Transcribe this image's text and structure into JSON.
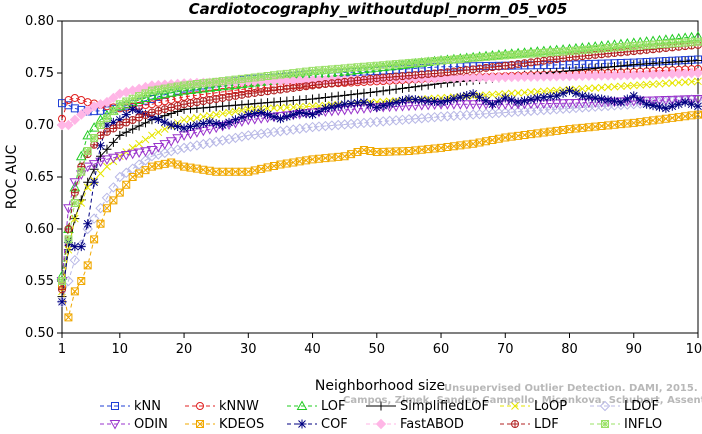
{
  "chart_data": {
    "type": "line",
    "title": "Cardiotocography_withoutdupl_norm_05_v05",
    "xlabel": "Neighborhood size",
    "ylabel": "ROC AUC",
    "xlim": [
      1,
      100
    ],
    "ylim": [
      0.5,
      0.8
    ],
    "xticks": [
      1,
      10,
      20,
      30,
      40,
      50,
      60,
      70,
      80,
      90,
      100
    ],
    "yticks": [
      0.5,
      0.55,
      0.6,
      0.65,
      0.7,
      0.75,
      0.8
    ],
    "ytick_labels": [
      "0.50",
      "0.55",
      "0.60",
      "0.65",
      "0.70",
      "0.75",
      "0.80"
    ],
    "grid": false,
    "legend_position": "bottom",
    "credit_lines": [
      "Unsupervised Outlier Detection. DAMI, 2015.",
      "Campos, Zimek, Sander, Campello, Micenkova, Schubert, Assent, Houle"
    ],
    "series": [
      {
        "name": "kNN",
        "color": "#1f3fd6",
        "marker": "square",
        "dash": "4,3",
        "points": [
          [
            1,
            0.721
          ],
          [
            2,
            0.719
          ],
          [
            3,
            0.716
          ],
          [
            5,
            0.713
          ],
          [
            8,
            0.714
          ],
          [
            10,
            0.717
          ],
          [
            15,
            0.725
          ],
          [
            20,
            0.735
          ],
          [
            25,
            0.74
          ],
          [
            30,
            0.744
          ],
          [
            35,
            0.746
          ],
          [
            40,
            0.749
          ],
          [
            50,
            0.752
          ],
          [
            60,
            0.756
          ],
          [
            70,
            0.757
          ],
          [
            80,
            0.758
          ],
          [
            90,
            0.76
          ],
          [
            100,
            0.763
          ]
        ]
      },
      {
        "name": "kNNW",
        "color": "#e02020",
        "marker": "circle",
        "dash": "4,3",
        "points": [
          [
            1,
            0.706
          ],
          [
            2,
            0.724
          ],
          [
            3,
            0.726
          ],
          [
            5,
            0.722
          ],
          [
            8,
            0.718
          ],
          [
            10,
            0.716
          ],
          [
            15,
            0.72
          ],
          [
            20,
            0.727
          ],
          [
            25,
            0.731
          ],
          [
            30,
            0.735
          ],
          [
            40,
            0.739
          ],
          [
            50,
            0.742
          ],
          [
            60,
            0.745
          ],
          [
            70,
            0.747
          ],
          [
            80,
            0.749
          ],
          [
            90,
            0.751
          ],
          [
            100,
            0.754
          ]
        ]
      },
      {
        "name": "LOF",
        "color": "#22cc22",
        "marker": "triangle",
        "dash": "4,3",
        "points": [
          [
            1,
            0.555
          ],
          [
            2,
            0.6
          ],
          [
            3,
            0.64
          ],
          [
            4,
            0.67
          ],
          [
            5,
            0.69
          ],
          [
            7,
            0.705
          ],
          [
            10,
            0.718
          ],
          [
            15,
            0.728
          ],
          [
            20,
            0.733
          ],
          [
            30,
            0.74
          ],
          [
            40,
            0.748
          ],
          [
            50,
            0.755
          ],
          [
            60,
            0.762
          ],
          [
            70,
            0.768
          ],
          [
            80,
            0.773
          ],
          [
            90,
            0.779
          ],
          [
            100,
            0.785
          ]
        ]
      },
      {
        "name": "SimplifiedLOF",
        "color": "#000000",
        "marker": "plus",
        "dash": "",
        "points": [
          [
            1,
            0.535
          ],
          [
            2,
            0.58
          ],
          [
            3,
            0.61
          ],
          [
            4,
            0.628
          ],
          [
            5,
            0.645
          ],
          [
            7,
            0.67
          ],
          [
            10,
            0.69
          ],
          [
            15,
            0.705
          ],
          [
            20,
            0.715
          ],
          [
            30,
            0.72
          ],
          [
            40,
            0.725
          ],
          [
            50,
            0.732
          ],
          [
            60,
            0.74
          ],
          [
            70,
            0.746
          ],
          [
            80,
            0.752
          ],
          [
            90,
            0.758
          ],
          [
            100,
            0.762
          ]
        ]
      },
      {
        "name": "LoOP",
        "color": "#e6e600",
        "marker": "x",
        "dash": "4,3",
        "points": [
          [
            1,
            0.54
          ],
          [
            2,
            0.58
          ],
          [
            3,
            0.61
          ],
          [
            5,
            0.64
          ],
          [
            8,
            0.66
          ],
          [
            10,
            0.67
          ],
          [
            15,
            0.69
          ],
          [
            20,
            0.705
          ],
          [
            30,
            0.715
          ],
          [
            40,
            0.718
          ],
          [
            50,
            0.722
          ],
          [
            60,
            0.726
          ],
          [
            70,
            0.73
          ],
          [
            80,
            0.734
          ],
          [
            90,
            0.738
          ],
          [
            100,
            0.742
          ]
        ]
      },
      {
        "name": "LDOF",
        "color": "#b8b8e6",
        "marker": "diamond",
        "dash": "4,3",
        "points": [
          [
            1,
            0.53
          ],
          [
            2,
            0.55
          ],
          [
            3,
            0.57
          ],
          [
            5,
            0.6
          ],
          [
            8,
            0.63
          ],
          [
            10,
            0.65
          ],
          [
            15,
            0.67
          ],
          [
            20,
            0.678
          ],
          [
            30,
            0.69
          ],
          [
            40,
            0.698
          ],
          [
            50,
            0.703
          ],
          [
            60,
            0.708
          ],
          [
            70,
            0.712
          ],
          [
            80,
            0.716
          ],
          [
            90,
            0.72
          ],
          [
            100,
            0.725
          ]
        ]
      },
      {
        "name": "ODIN",
        "color": "#9933cc",
        "marker": "triangle-down",
        "dash": "4,3",
        "points": [
          [
            1,
            0.55
          ],
          [
            2,
            0.62
          ],
          [
            3,
            0.645
          ],
          [
            5,
            0.66
          ],
          [
            8,
            0.667
          ],
          [
            10,
            0.67
          ],
          [
            15,
            0.676
          ],
          [
            20,
            0.69
          ],
          [
            30,
            0.705
          ],
          [
            40,
            0.712
          ],
          [
            50,
            0.717
          ],
          [
            60,
            0.72
          ],
          [
            70,
            0.72
          ],
          [
            80,
            0.721
          ],
          [
            90,
            0.723
          ],
          [
            100,
            0.725
          ]
        ]
      },
      {
        "name": "KDEOS",
        "color": "#f0a800",
        "marker": "square-x",
        "dash": "4,3",
        "points": [
          [
            1,
            0.545
          ],
          [
            2,
            0.515
          ],
          [
            3,
            0.54
          ],
          [
            4,
            0.55
          ],
          [
            5,
            0.565
          ],
          [
            6,
            0.59
          ],
          [
            8,
            0.62
          ],
          [
            10,
            0.635
          ],
          [
            12,
            0.65
          ],
          [
            15,
            0.66
          ],
          [
            18,
            0.664
          ],
          [
            20,
            0.66
          ],
          [
            25,
            0.655
          ],
          [
            30,
            0.655
          ],
          [
            35,
            0.662
          ],
          [
            40,
            0.667
          ],
          [
            45,
            0.67
          ],
          [
            48,
            0.676
          ],
          [
            50,
            0.674
          ],
          [
            55,
            0.675
          ],
          [
            60,
            0.678
          ],
          [
            65,
            0.682
          ],
          [
            70,
            0.688
          ],
          [
            75,
            0.692
          ],
          [
            80,
            0.696
          ],
          [
            85,
            0.699
          ],
          [
            90,
            0.702
          ],
          [
            95,
            0.706
          ],
          [
            100,
            0.71
          ]
        ]
      },
      {
        "name": "COF",
        "color": "#000080",
        "marker": "asterisk",
        "dash": "4,3",
        "points": [
          [
            1,
            0.53
          ],
          [
            2,
            0.587
          ],
          [
            3,
            0.583
          ],
          [
            4,
            0.583
          ],
          [
            5,
            0.605
          ],
          [
            6,
            0.645
          ],
          [
            7,
            0.68
          ],
          [
            8,
            0.7
          ],
          [
            10,
            0.705
          ],
          [
            12,
            0.715
          ],
          [
            15,
            0.708
          ],
          [
            18,
            0.7
          ],
          [
            20,
            0.697
          ],
          [
            22,
            0.7
          ],
          [
            24,
            0.703
          ],
          [
            26,
            0.7
          ],
          [
            28,
            0.705
          ],
          [
            30,
            0.71
          ],
          [
            32,
            0.712
          ],
          [
            35,
            0.706
          ],
          [
            38,
            0.712
          ],
          [
            40,
            0.71
          ],
          [
            42,
            0.716
          ],
          [
            45,
            0.72
          ],
          [
            48,
            0.722
          ],
          [
            50,
            0.717
          ],
          [
            55,
            0.725
          ],
          [
            60,
            0.722
          ],
          [
            65,
            0.73
          ],
          [
            68,
            0.72
          ],
          [
            70,
            0.726
          ],
          [
            72,
            0.722
          ],
          [
            75,
            0.726
          ],
          [
            78,
            0.728
          ],
          [
            80,
            0.733
          ],
          [
            82,
            0.728
          ],
          [
            85,
            0.725
          ],
          [
            88,
            0.722
          ],
          [
            90,
            0.728
          ],
          [
            92,
            0.72
          ],
          [
            95,
            0.716
          ],
          [
            98,
            0.722
          ],
          [
            100,
            0.718
          ]
        ]
      },
      {
        "name": "FastABOD",
        "color": "#ffb6e6",
        "marker": "diamond-filled",
        "dash": "4,3",
        "points": [
          [
            1,
            0.7
          ],
          [
            2,
            0.7
          ],
          [
            4,
            0.71
          ],
          [
            6,
            0.718
          ],
          [
            8,
            0.722
          ],
          [
            10,
            0.73
          ],
          [
            15,
            0.738
          ],
          [
            20,
            0.74
          ],
          [
            30,
            0.742
          ],
          [
            40,
            0.743
          ],
          [
            50,
            0.744
          ],
          [
            60,
            0.745
          ],
          [
            70,
            0.746
          ],
          [
            80,
            0.747
          ],
          [
            90,
            0.748
          ],
          [
            100,
            0.75
          ]
        ]
      },
      {
        "name": "LDF",
        "color": "#b02020",
        "marker": "circle-plus",
        "dash": "4,3",
        "points": [
          [
            1,
            0.542
          ],
          [
            2,
            0.6
          ],
          [
            3,
            0.635
          ],
          [
            4,
            0.66
          ],
          [
            5,
            0.672
          ],
          [
            7,
            0.69
          ],
          [
            10,
            0.7
          ],
          [
            15,
            0.712
          ],
          [
            20,
            0.72
          ],
          [
            30,
            0.73
          ],
          [
            40,
            0.738
          ],
          [
            50,
            0.745
          ],
          [
            60,
            0.75
          ],
          [
            70,
            0.757
          ],
          [
            80,
            0.765
          ],
          [
            90,
            0.771
          ],
          [
            100,
            0.777
          ]
        ]
      },
      {
        "name": "INFLO",
        "color": "#99e066",
        "marker": "square-asterisk",
        "dash": "4,3",
        "points": [
          [
            1,
            0.55
          ],
          [
            2,
            0.59
          ],
          [
            3,
            0.625
          ],
          [
            4,
            0.655
          ],
          [
            5,
            0.675
          ],
          [
            7,
            0.7
          ],
          [
            10,
            0.72
          ],
          [
            15,
            0.733
          ],
          [
            20,
            0.738
          ],
          [
            30,
            0.745
          ],
          [
            40,
            0.752
          ],
          [
            50,
            0.757
          ],
          [
            60,
            0.762
          ],
          [
            70,
            0.767
          ],
          [
            80,
            0.771
          ],
          [
            90,
            0.776
          ],
          [
            100,
            0.78
          ]
        ]
      }
    ],
    "legend_order": [
      "kNN",
      "kNNW",
      "LOF",
      "SimplifiedLOF",
      "LoOP",
      "LDOF",
      "ODIN",
      "KDEOS",
      "COF",
      "FastABOD",
      "LDF",
      "INFLO"
    ]
  }
}
